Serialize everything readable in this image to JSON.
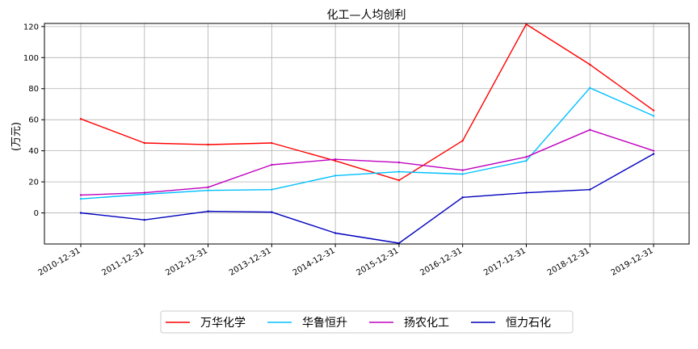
{
  "chart_data": {
    "type": "line",
    "title": "化工—人均创利",
    "xlabel": "",
    "ylabel": "(万元)",
    "categories": [
      "2010-12-31",
      "2011-12-31",
      "2012-12-31",
      "2013-12-31",
      "2014-12-31",
      "2015-12-31",
      "2016-12-31",
      "2017-12-31",
      "2018-12-31",
      "2019-12-31"
    ],
    "ylim": [
      -20,
      122
    ],
    "yticks": [
      0,
      20,
      40,
      60,
      80,
      100,
      120
    ],
    "grid": true,
    "legend_position": "bottom-center",
    "series": [
      {
        "name": "万华化学",
        "color": "#ff0000",
        "values": [
          60.5,
          45,
          44,
          45,
          33.5,
          21,
          46.5,
          121.5,
          95.5,
          66
        ]
      },
      {
        "name": "华鲁恒升",
        "color": "#00bfff",
        "values": [
          9,
          12,
          14.5,
          15,
          24,
          26.5,
          25,
          33.5,
          80.5,
          62.5
        ]
      },
      {
        "name": "扬农化工",
        "color": "#bf00bf",
        "values": [
          11.5,
          13,
          16.5,
          31,
          34.5,
          32.5,
          27.5,
          36,
          53.5,
          40
        ]
      },
      {
        "name": "恒力石化",
        "color": "#0000bf",
        "values": [
          0,
          -4.5,
          1,
          0.5,
          -13,
          -19.5,
          10,
          13,
          15,
          38
        ]
      }
    ]
  }
}
